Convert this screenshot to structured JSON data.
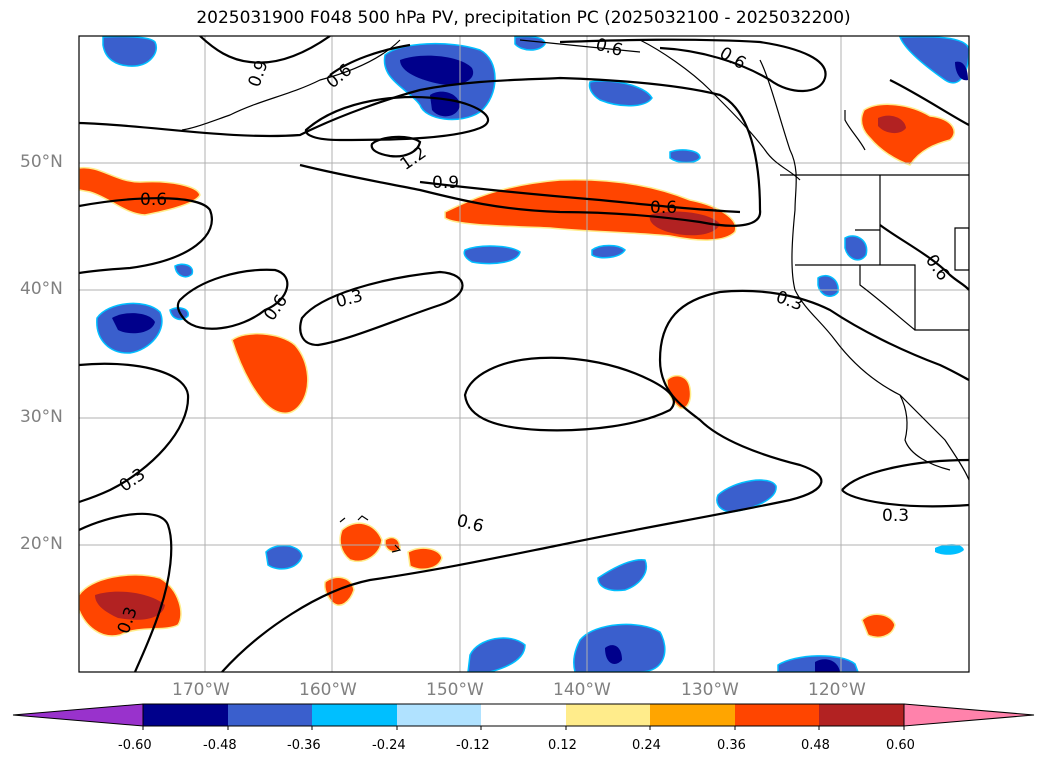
{
  "title": "2025031900 F048 500 hPa PV, precipitation PC (2025032100 - 2025032200)",
  "map": {
    "projection": "PlateCarree",
    "lon_range": [
      -180,
      -110
    ],
    "lat_range": [
      10,
      60
    ],
    "gridlines": true,
    "coastlines": true,
    "state_borders": true
  },
  "lat_labels": [
    "50°N",
    "40°N",
    "30°N",
    "20°N"
  ],
  "lon_labels": [
    "170°W",
    "160°W",
    "150°W",
    "140°W",
    "130°W",
    "120°W"
  ],
  "contour_labels": [
    "0.9",
    "0.6",
    "0.6",
    "1.2",
    "0.9",
    "0.6",
    "0.6",
    "0.6",
    "0.3",
    "0.6",
    "0.3",
    "0.3",
    "0.3",
    "0.6",
    "0.3",
    "0.6"
  ],
  "colorbar": {
    "ticks": [
      "-0.60",
      "-0.48",
      "-0.36",
      "-0.24",
      "-0.12",
      "0.12",
      "0.24",
      "0.36",
      "0.48",
      "0.60"
    ],
    "colors": [
      "#9932cc",
      "#00008b",
      "#3a5fcd",
      "#00bfff",
      "#b0e2ff",
      "#ffffff",
      "#ffec8b",
      "#ffa500",
      "#ff4500",
      "#b22222",
      "#ff82ab"
    ],
    "extend": "both"
  }
}
